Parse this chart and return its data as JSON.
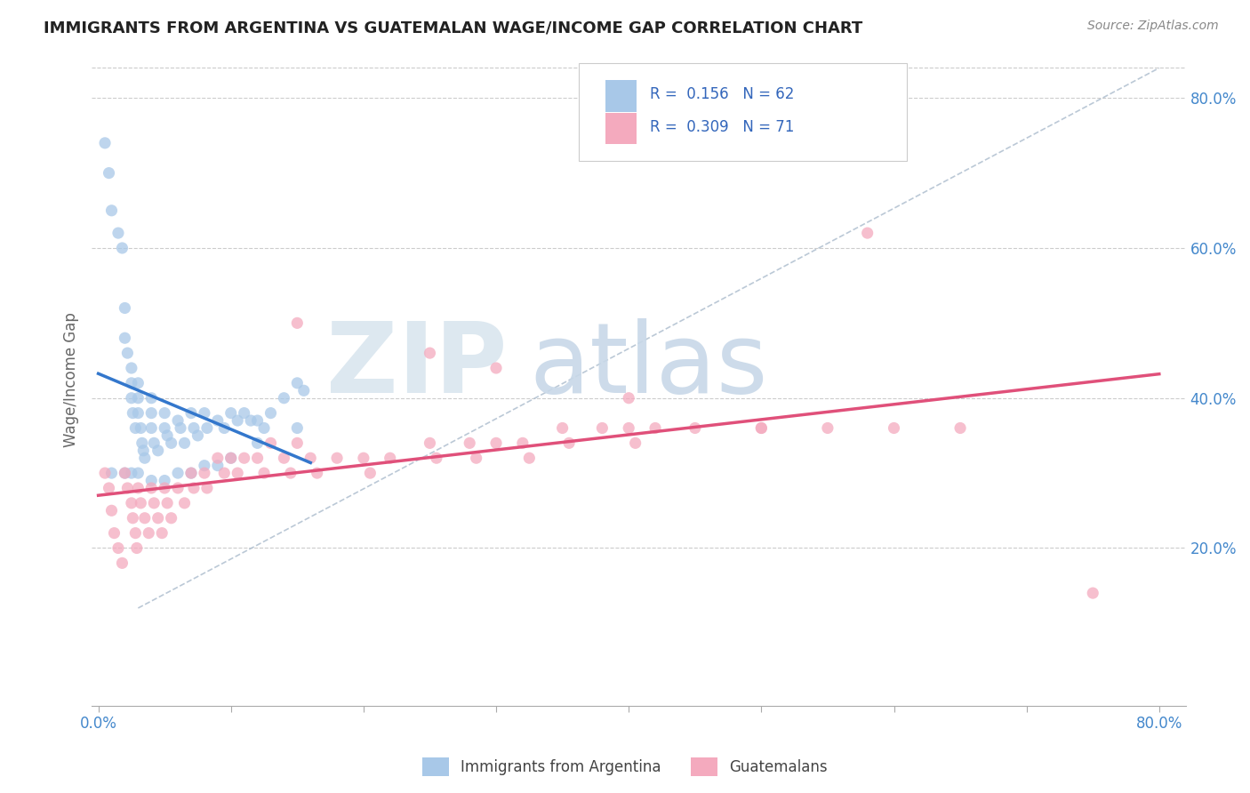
{
  "title": "IMMIGRANTS FROM ARGENTINA VS GUATEMALAN WAGE/INCOME GAP CORRELATION CHART",
  "source": "Source: ZipAtlas.com",
  "ylabel": "Wage/Income Gap",
  "x_ticks": [
    0.0,
    0.1,
    0.2,
    0.3,
    0.4,
    0.5,
    0.6,
    0.7,
    0.8
  ],
  "y_ticks_right": [
    0.2,
    0.4,
    0.6,
    0.8
  ],
  "y_tick_labels_right": [
    "20.0%",
    "40.0%",
    "60.0%",
    "80.0%"
  ],
  "xlim": [
    -0.005,
    0.82
  ],
  "ylim": [
    -0.01,
    0.86
  ],
  "argentina_color": "#a8c8e8",
  "guatemala_color": "#f4aabe",
  "argentina_line_color": "#3377cc",
  "guatemala_line_color": "#e0507a",
  "ref_line_color": "#aabbcc",
  "argentina_x": [
    0.005,
    0.008,
    0.01,
    0.015,
    0.018,
    0.02,
    0.02,
    0.022,
    0.025,
    0.025,
    0.025,
    0.026,
    0.028,
    0.03,
    0.03,
    0.03,
    0.032,
    0.033,
    0.034,
    0.035,
    0.04,
    0.04,
    0.04,
    0.042,
    0.045,
    0.05,
    0.05,
    0.052,
    0.055,
    0.06,
    0.062,
    0.065,
    0.07,
    0.072,
    0.075,
    0.08,
    0.082,
    0.09,
    0.095,
    0.1,
    0.105,
    0.11,
    0.115,
    0.12,
    0.125,
    0.13,
    0.14,
    0.15,
    0.155,
    0.01,
    0.02,
    0.025,
    0.03,
    0.04,
    0.05,
    0.06,
    0.07,
    0.08,
    0.09,
    0.1,
    0.12,
    0.15
  ],
  "argentina_y": [
    0.74,
    0.7,
    0.65,
    0.62,
    0.6,
    0.52,
    0.48,
    0.46,
    0.44,
    0.42,
    0.4,
    0.38,
    0.36,
    0.42,
    0.4,
    0.38,
    0.36,
    0.34,
    0.33,
    0.32,
    0.4,
    0.38,
    0.36,
    0.34,
    0.33,
    0.38,
    0.36,
    0.35,
    0.34,
    0.37,
    0.36,
    0.34,
    0.38,
    0.36,
    0.35,
    0.38,
    0.36,
    0.37,
    0.36,
    0.38,
    0.37,
    0.38,
    0.37,
    0.37,
    0.36,
    0.38,
    0.4,
    0.42,
    0.41,
    0.3,
    0.3,
    0.3,
    0.3,
    0.29,
    0.29,
    0.3,
    0.3,
    0.31,
    0.31,
    0.32,
    0.34,
    0.36
  ],
  "guatemala_x": [
    0.005,
    0.008,
    0.01,
    0.012,
    0.015,
    0.018,
    0.02,
    0.022,
    0.025,
    0.026,
    0.028,
    0.029,
    0.03,
    0.032,
    0.035,
    0.038,
    0.04,
    0.042,
    0.045,
    0.048,
    0.05,
    0.052,
    0.055,
    0.06,
    0.065,
    0.07,
    0.072,
    0.08,
    0.082,
    0.09,
    0.095,
    0.1,
    0.105,
    0.11,
    0.12,
    0.125,
    0.13,
    0.14,
    0.145,
    0.15,
    0.16,
    0.165,
    0.18,
    0.2,
    0.205,
    0.22,
    0.25,
    0.255,
    0.28,
    0.285,
    0.3,
    0.32,
    0.325,
    0.35,
    0.355,
    0.38,
    0.4,
    0.405,
    0.42,
    0.45,
    0.5,
    0.55,
    0.6,
    0.65,
    0.75,
    0.58,
    0.15,
    0.25,
    0.3,
    0.4,
    0.5
  ],
  "guatemala_y": [
    0.3,
    0.28,
    0.25,
    0.22,
    0.2,
    0.18,
    0.3,
    0.28,
    0.26,
    0.24,
    0.22,
    0.2,
    0.28,
    0.26,
    0.24,
    0.22,
    0.28,
    0.26,
    0.24,
    0.22,
    0.28,
    0.26,
    0.24,
    0.28,
    0.26,
    0.3,
    0.28,
    0.3,
    0.28,
    0.32,
    0.3,
    0.32,
    0.3,
    0.32,
    0.32,
    0.3,
    0.34,
    0.32,
    0.3,
    0.34,
    0.32,
    0.3,
    0.32,
    0.32,
    0.3,
    0.32,
    0.34,
    0.32,
    0.34,
    0.32,
    0.34,
    0.34,
    0.32,
    0.36,
    0.34,
    0.36,
    0.36,
    0.34,
    0.36,
    0.36,
    0.36,
    0.36,
    0.36,
    0.36,
    0.14,
    0.62,
    0.5,
    0.46,
    0.44,
    0.4,
    0.36
  ]
}
